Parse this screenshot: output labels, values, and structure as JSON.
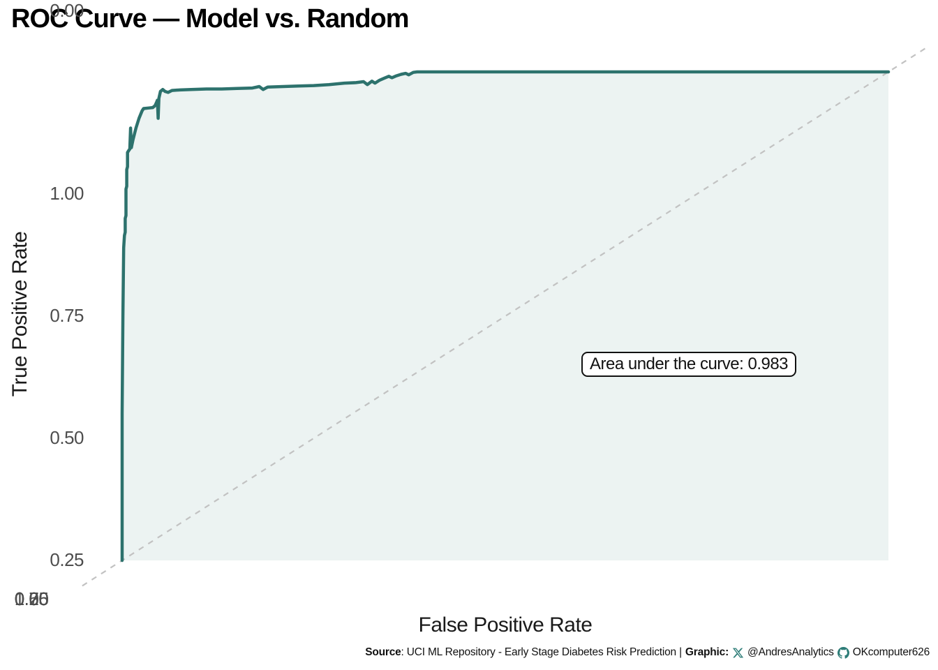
{
  "title": "ROC Curve — Model vs. Random",
  "annotation": {
    "label": "Area under the curve: 0.983"
  },
  "footer": {
    "source_label": "Source",
    "source_rest": ": UCI ML Repository - Early Stage Diabetes Risk Prediction |",
    "graphic_label": "Graphic:",
    "twitter_handle": "@AndresAnalytics",
    "github_handle": "OKcomputer626",
    "icon_color": "#2e7d78"
  },
  "chart_data": {
    "type": "line",
    "title": "ROC Curve — Model vs. Random",
    "xlabel": "False Positive Rate",
    "ylabel": "True Positive Rate",
    "xlim": [
      0,
      1
    ],
    "ylim": [
      0,
      1
    ],
    "xticks": [
      "0.00",
      "0.25",
      "0.50",
      "0.75",
      "1.00"
    ],
    "yticks": [
      "0.00",
      "0.25",
      "0.50",
      "0.75",
      "1.00"
    ],
    "grid": false,
    "legend": "none",
    "auc": 0.983,
    "annotation": "Area under the curve: 0.983",
    "colors": {
      "curve": "#2d726d",
      "fill_under_curve": "#ecf3f2",
      "random_diagonal": "#c2c2c2",
      "tick_text": "#4d4d4d",
      "axis_title_text": "#1a1a1a"
    },
    "series": [
      {
        "name": "Model",
        "style": "solid",
        "color": "#2d726d",
        "fill": "#ecf3f2",
        "points": [
          [
            0.0,
            0.0
          ],
          [
            0.0,
            0.3
          ],
          [
            0.001,
            0.5
          ],
          [
            0.002,
            0.64
          ],
          [
            0.003,
            0.665
          ],
          [
            0.004,
            0.672
          ],
          [
            0.004,
            0.7
          ],
          [
            0.005,
            0.706
          ],
          [
            0.005,
            0.76
          ],
          [
            0.006,
            0.766
          ],
          [
            0.006,
            0.8
          ],
          [
            0.007,
            0.806
          ],
          [
            0.007,
            0.835
          ],
          [
            0.009,
            0.84
          ],
          [
            0.01,
            0.842
          ],
          [
            0.011,
            0.885
          ],
          [
            0.012,
            0.845
          ],
          [
            0.014,
            0.86
          ],
          [
            0.018,
            0.885
          ],
          [
            0.022,
            0.905
          ],
          [
            0.026,
            0.92
          ],
          [
            0.028,
            0.925
          ],
          [
            0.034,
            0.926
          ],
          [
            0.04,
            0.927
          ],
          [
            0.043,
            0.931
          ],
          [
            0.045,
            0.938
          ],
          [
            0.046,
            0.942
          ],
          [
            0.047,
            0.905
          ],
          [
            0.048,
            0.946
          ],
          [
            0.05,
            0.96
          ],
          [
            0.053,
            0.964
          ],
          [
            0.056,
            0.96
          ],
          [
            0.06,
            0.958
          ],
          [
            0.065,
            0.962
          ],
          [
            0.075,
            0.963
          ],
          [
            0.09,
            0.964
          ],
          [
            0.11,
            0.965
          ],
          [
            0.13,
            0.965
          ],
          [
            0.15,
            0.966
          ],
          [
            0.17,
            0.967
          ],
          [
            0.179,
            0.97
          ],
          [
            0.184,
            0.964
          ],
          [
            0.19,
            0.969
          ],
          [
            0.21,
            0.97
          ],
          [
            0.23,
            0.971
          ],
          [
            0.25,
            0.972
          ],
          [
            0.27,
            0.974
          ],
          [
            0.29,
            0.977
          ],
          [
            0.305,
            0.978
          ],
          [
            0.315,
            0.98
          ],
          [
            0.32,
            0.974
          ],
          [
            0.326,
            0.981
          ],
          [
            0.33,
            0.977
          ],
          [
            0.336,
            0.983
          ],
          [
            0.342,
            0.987
          ],
          [
            0.348,
            0.991
          ],
          [
            0.352,
            0.988
          ],
          [
            0.358,
            0.992
          ],
          [
            0.364,
            0.995
          ],
          [
            0.37,
            0.997
          ],
          [
            0.374,
            0.994
          ],
          [
            0.38,
            0.999
          ],
          [
            0.385,
            1.0
          ],
          [
            1.0,
            1.0
          ]
        ]
      },
      {
        "name": "Random",
        "style": "dashed",
        "color": "#c2c2c2",
        "points": [
          [
            0,
            0
          ],
          [
            1,
            1
          ]
        ]
      }
    ]
  }
}
